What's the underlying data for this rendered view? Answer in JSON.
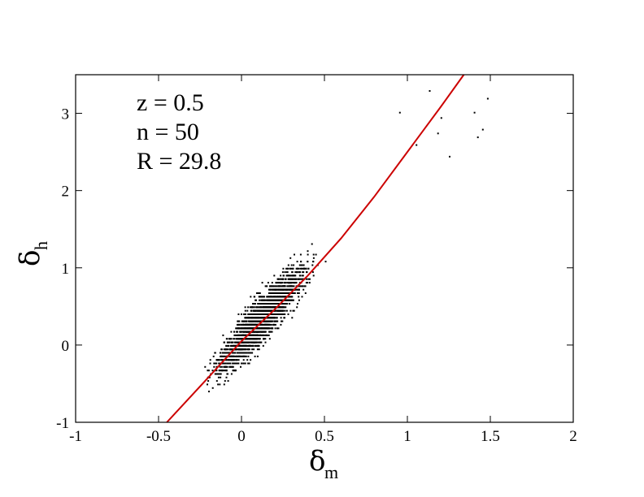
{
  "chart_data": {
    "type": "scatter",
    "title": "",
    "xlabel": {
      "symbol": "δ",
      "subscript": "m"
    },
    "ylabel": {
      "symbol": "δ",
      "subscript": "h"
    },
    "xlim": [
      -1,
      2
    ],
    "ylim": [
      -1,
      3.5
    ],
    "xticks": [
      -1,
      -0.5,
      0,
      0.5,
      1,
      1.5,
      2
    ],
    "xtick_labels": [
      "-1",
      "-0.5",
      "0",
      "0.5",
      "1",
      "1.5",
      "2"
    ],
    "yticks": [
      -1,
      0,
      1,
      2,
      3
    ],
    "ytick_labels": [
      "-1",
      "0",
      "1",
      "2",
      "3"
    ],
    "grid": false,
    "annotations": [
      "z = 0.5",
      "n = 50",
      "R = 29.8"
    ],
    "series": [
      {
        "kind": "scatter-cloud",
        "color": "#000000",
        "x_range": [
          -0.6,
          1.5
        ],
        "y_range": [
          -1,
          3.3
        ],
        "trend": {
          "slope": 2.4,
          "intercept": 0.07
        },
        "outliers": [
          [
            1.48,
            3.2
          ],
          [
            1.4,
            3.02
          ],
          [
            1.45,
            2.8
          ],
          [
            1.42,
            2.7
          ],
          [
            1.2,
            2.95
          ],
          [
            1.18,
            2.75
          ],
          [
            1.25,
            2.45
          ],
          [
            1.05,
            2.6
          ],
          [
            0.95,
            3.02
          ],
          [
            1.13,
            3.3
          ]
        ]
      },
      {
        "kind": "fit-line",
        "color": "#cc0000",
        "points": [
          [
            -0.45,
            -1.0
          ],
          [
            -0.2,
            -0.42
          ],
          [
            0.0,
            0.05
          ],
          [
            0.2,
            0.46
          ],
          [
            0.4,
            0.9
          ],
          [
            0.6,
            1.38
          ],
          [
            0.8,
            1.92
          ],
          [
            1.0,
            2.5
          ],
          [
            1.2,
            3.08
          ],
          [
            1.34,
            3.5
          ]
        ]
      }
    ]
  }
}
